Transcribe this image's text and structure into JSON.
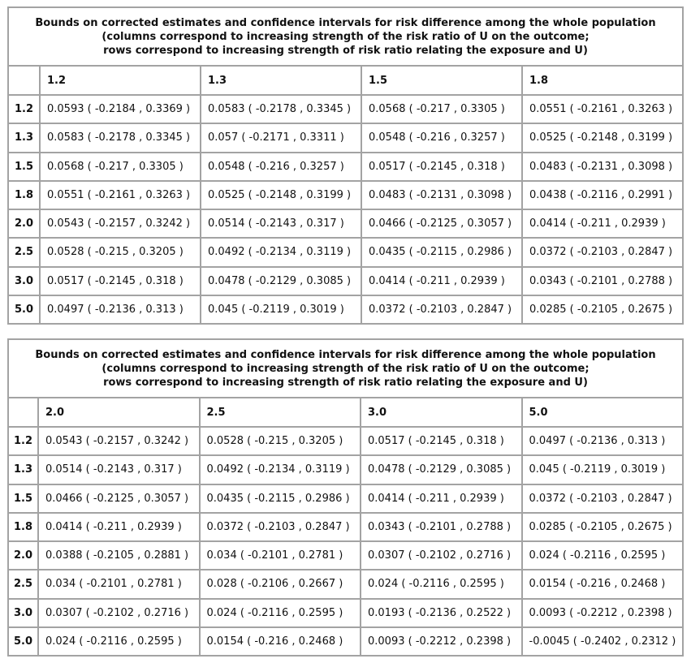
{
  "tables": [
    {
      "title": [
        "Bounds on corrected estimates and confidence intervals for risk difference among the whole population",
        "(columns correspond to increasing strength of the risk ratio of U on the outcome;",
        "rows correspond to increasing strength of risk ratio relating the exposure and U)"
      ],
      "columns": [
        "1.2",
        "1.3",
        "1.5",
        "1.8"
      ],
      "rows": [
        {
          "label": "1.2",
          "cells": [
            "0.0593 ( -0.2184 , 0.3369 )",
            "0.0583 ( -0.2178 , 0.3345 )",
            "0.0568 ( -0.217 , 0.3305 )",
            "0.0551 ( -0.2161 , 0.3263 )"
          ]
        },
        {
          "label": "1.3",
          "cells": [
            "0.0583 ( -0.2178 , 0.3345 )",
            "0.057 ( -0.2171 , 0.3311 )",
            "0.0548 ( -0.216 , 0.3257 )",
            "0.0525 ( -0.2148 , 0.3199 )"
          ]
        },
        {
          "label": "1.5",
          "cells": [
            "0.0568 ( -0.217 , 0.3305 )",
            "0.0548 ( -0.216 , 0.3257 )",
            "0.0517 ( -0.2145 , 0.318 )",
            "0.0483 ( -0.2131 , 0.3098 )"
          ]
        },
        {
          "label": "1.8",
          "cells": [
            "0.0551 ( -0.2161 , 0.3263 )",
            "0.0525 ( -0.2148 , 0.3199 )",
            "0.0483 ( -0.2131 , 0.3098 )",
            "0.0438 ( -0.2116 , 0.2991 )"
          ]
        },
        {
          "label": "2.0",
          "cells": [
            "0.0543 ( -0.2157 , 0.3242 )",
            "0.0514 ( -0.2143 , 0.317 )",
            "0.0466 ( -0.2125 , 0.3057 )",
            "0.0414 ( -0.211 , 0.2939 )"
          ]
        },
        {
          "label": "2.5",
          "cells": [
            "0.0528 ( -0.215 , 0.3205 )",
            "0.0492 ( -0.2134 , 0.3119 )",
            "0.0435 ( -0.2115 , 0.2986 )",
            "0.0372 ( -0.2103 , 0.2847 )"
          ]
        },
        {
          "label": "3.0",
          "cells": [
            "0.0517 ( -0.2145 , 0.318 )",
            "0.0478 ( -0.2129 , 0.3085 )",
            "0.0414 ( -0.211 , 0.2939 )",
            "0.0343 ( -0.2101 , 0.2788 )"
          ]
        },
        {
          "label": "5.0",
          "cells": [
            "0.0497 ( -0.2136 , 0.313 )",
            "0.045 ( -0.2119 , 0.3019 )",
            "0.0372 ( -0.2103 , 0.2847 )",
            "0.0285 ( -0.2105 , 0.2675 )"
          ]
        }
      ]
    },
    {
      "title": [
        "Bounds on corrected estimates and confidence intervals for risk difference among the whole population",
        "(columns correspond to increasing strength of the risk ratio of U on the outcome;",
        "rows correspond to increasing strength of risk ratio relating the exposure and U)"
      ],
      "columns": [
        "2.0",
        "2.5",
        "3.0",
        "5.0"
      ],
      "rows": [
        {
          "label": "1.2",
          "cells": [
            "0.0543 ( -0.2157 , 0.3242 )",
            "0.0528 ( -0.215 , 0.3205 )",
            "0.0517 ( -0.2145 , 0.318 )",
            "0.0497 ( -0.2136 , 0.313 )"
          ]
        },
        {
          "label": "1.3",
          "cells": [
            "0.0514 ( -0.2143 , 0.317 )",
            "0.0492 ( -0.2134 , 0.3119 )",
            "0.0478 ( -0.2129 , 0.3085 )",
            "0.045 ( -0.2119 , 0.3019 )"
          ]
        },
        {
          "label": "1.5",
          "cells": [
            "0.0466 ( -0.2125 , 0.3057 )",
            "0.0435 ( -0.2115 , 0.2986 )",
            "0.0414 ( -0.211 , 0.2939 )",
            "0.0372 ( -0.2103 , 0.2847 )"
          ]
        },
        {
          "label": "1.8",
          "cells": [
            "0.0414 ( -0.211 , 0.2939 )",
            "0.0372 ( -0.2103 , 0.2847 )",
            "0.0343 ( -0.2101 , 0.2788 )",
            "0.0285 ( -0.2105 , 0.2675 )"
          ]
        },
        {
          "label": "2.0",
          "cells": [
            "0.0388 ( -0.2105 , 0.2881 )",
            "0.034 ( -0.2101 , 0.2781 )",
            "0.0307 ( -0.2102 , 0.2716 )",
            "0.024 ( -0.2116 , 0.2595 )"
          ]
        },
        {
          "label": "2.5",
          "cells": [
            "0.034 ( -0.2101 , 0.2781 )",
            "0.028 ( -0.2106 , 0.2667 )",
            "0.024 ( -0.2116 , 0.2595 )",
            "0.0154 ( -0.216 , 0.2468 )"
          ]
        },
        {
          "label": "3.0",
          "cells": [
            "0.0307 ( -0.2102 , 0.2716 )",
            "0.024 ( -0.2116 , 0.2595 )",
            "0.0193 ( -0.2136 , 0.2522 )",
            "0.0093 ( -0.2212 , 0.2398 )"
          ]
        },
        {
          "label": "5.0",
          "cells": [
            "0.024 ( -0.2116 , 0.2595 )",
            "0.0154 ( -0.216 , 0.2468 )",
            "0.0093 ( -0.2212 , 0.2398 )",
            "-0.0045 ( -0.2402 , 0.2312 )"
          ]
        }
      ]
    }
  ]
}
